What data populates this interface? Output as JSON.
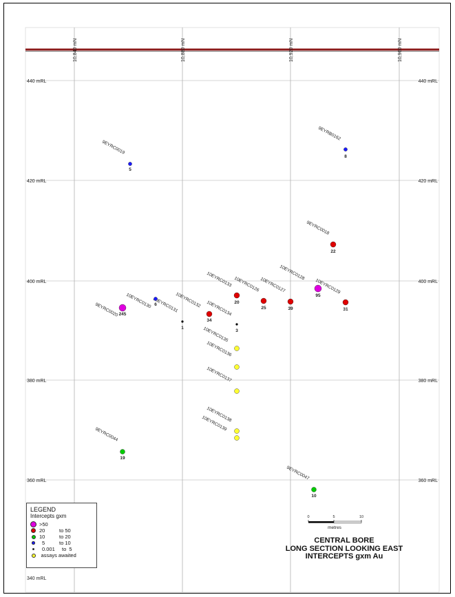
{
  "map": {
    "easting_labels": [
      "10,840 mN",
      "10,880 mN",
      "10,920 mN",
      "10,960 mN"
    ],
    "rl_labels_left": [
      "440 mRL",
      "420 mRL",
      "400 mRL",
      "380 mRL",
      "360 mRL",
      "340 mRL"
    ],
    "rl_labels_right": [
      "440 mRL",
      "420 mRL",
      "400 mRL",
      "380 mRL",
      "360 mRL"
    ],
    "surface_color": "#8b1a1a",
    "drillholes": [
      {
        "name": "9EYRC0019",
        "value": "5",
        "category": "5-10",
        "color": "#1a1aff"
      },
      {
        "name": "9EYRB0162",
        "value": "8",
        "category": "5-10",
        "color": "#1a1aff"
      },
      {
        "name": "9EYRC0018",
        "value": "22",
        "category": "20-50",
        "color": "#e00000"
      },
      {
        "name": "10EYRC0128",
        "value": "95",
        "category": ">50",
        "color": "#e000e0"
      },
      {
        "name": "10EYRC0129",
        "value": "31",
        "category": "20-50",
        "color": "#e00000"
      },
      {
        "name": "10EYRC0127",
        "value": "39",
        "category": "20-50",
        "color": "#e00000"
      },
      {
        "name": "10EYRC0126",
        "value": "25",
        "category": "20-50",
        "color": "#e00000"
      },
      {
        "name": "10EYRC0133",
        "value": "20",
        "category": "20-50",
        "color": "#e00000"
      },
      {
        "name": "10EYRC0132",
        "value": "34",
        "category": "20-50",
        "color": "#e00000"
      },
      {
        "name": "10EYRC0134",
        "value": "3",
        "category": "0.001-5",
        "color": "#000000"
      },
      {
        "name": "10EYRC0131",
        "value": "1",
        "category": "0.001-5",
        "color": "#000000"
      },
      {
        "name": "10EYRC0130",
        "value": "6",
        "category": "5-10",
        "color": "#1a1aff"
      },
      {
        "name": "9EYRC0020",
        "value": "245",
        "category": ">50",
        "color": "#e000e0"
      },
      {
        "name": "10EYRC0135",
        "value": "",
        "category": "awaited",
        "color": "#ffff33"
      },
      {
        "name": "10EYRC0136",
        "value": "",
        "category": "awaited",
        "color": "#ffff33"
      },
      {
        "name": "10EYRC0137",
        "value": "",
        "category": "awaited",
        "color": "#ffff33"
      },
      {
        "name": "10EYRC0138",
        "value": "",
        "category": "awaited",
        "color": "#ffff33"
      },
      {
        "name": "10EYRC0139",
        "value": "",
        "category": "awaited",
        "color": "#ffff33"
      },
      {
        "name": "9EYRC0044",
        "value": "19",
        "category": "10-20",
        "color": "#00cc00"
      },
      {
        "name": "9EYRC0047",
        "value": "10",
        "category": "10-20",
        "color": "#00cc00"
      }
    ]
  },
  "legend": {
    "title": "LEGEND",
    "subtitle": "Intercepts gxm",
    "items": [
      {
        "a": ">50",
        "b": "",
        "color": "#e000e0",
        "icon": "large-circle"
      },
      {
        "a": "20",
        "b": "to 50",
        "color": "#e00000",
        "icon": "circle"
      },
      {
        "a": "10",
        "b": "to 20",
        "color": "#00cc00",
        "icon": "circle"
      },
      {
        "a": "5",
        "b": "to 10",
        "color": "#1a1aff",
        "icon": "small-circle"
      },
      {
        "a": "0.001",
        "b": "to  5",
        "color": "#000000",
        "icon": "dot"
      },
      {
        "a": "",
        "b": "assays awaited",
        "color": "#ffff33",
        "icon": "circle"
      }
    ]
  },
  "scale": {
    "ticks": [
      "0",
      "5",
      "10"
    ],
    "unit": "metres"
  },
  "title_block": {
    "line1": "CENTRAL BORE",
    "line2": "LONG SECTION LOOKING EAST",
    "line3": "INTERCEPTS gxm Au"
  }
}
